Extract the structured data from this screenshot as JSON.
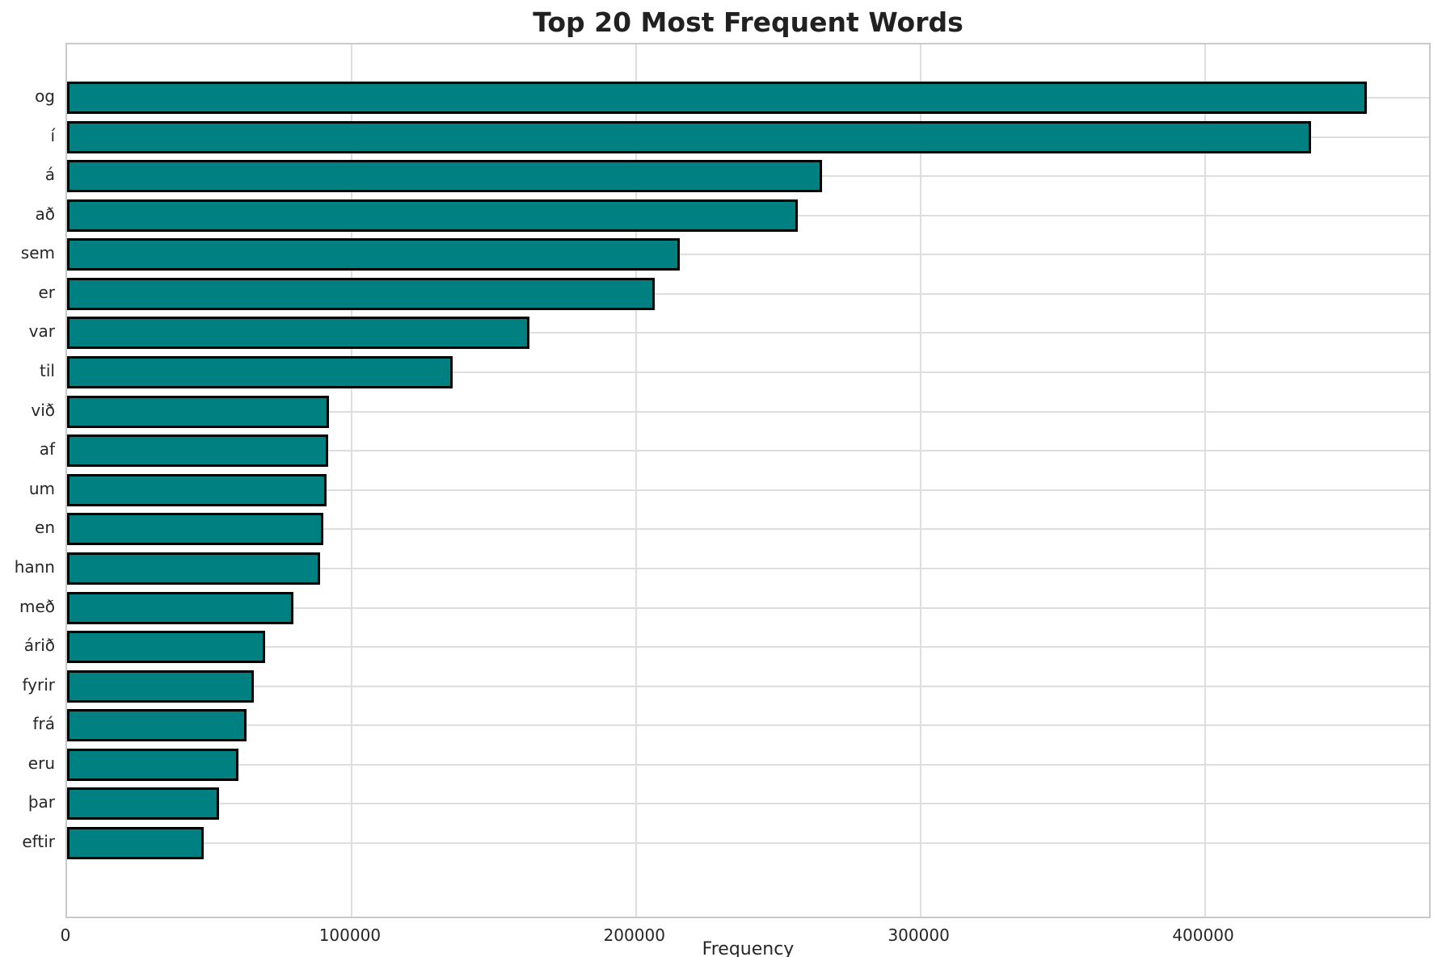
{
  "title": "Top 20 Most Frequent Words",
  "chart_data": {
    "type": "bar",
    "orientation": "horizontal",
    "title": "Top 20 Most Frequent Words",
    "xlabel": "Frequency",
    "ylabel": "",
    "categories": [
      "og",
      "í",
      "á",
      "að",
      "sem",
      "er",
      "var",
      "til",
      "við",
      "af",
      "um",
      "en",
      "hann",
      "með",
      "árið",
      "fyrir",
      "frá",
      "eru",
      "þar",
      "eftir"
    ],
    "values": [
      457000,
      437500,
      265500,
      257000,
      215500,
      206500,
      162500,
      135500,
      92000,
      91800,
      91200,
      90000,
      88900,
      79700,
      69600,
      65700,
      63100,
      60200,
      53400,
      48000
    ],
    "xlim": [
      0,
      480000
    ],
    "xticks": [
      0,
      100000,
      200000,
      300000,
      400000
    ],
    "grid": "both",
    "legend": "none",
    "colors": {
      "bar_fill": "#008080",
      "bar_edge": "#000000",
      "gridline": "#dedede",
      "spine": "#c9c9c9",
      "text": "#262626",
      "title_text": "#212121",
      "background": "#ffffff"
    }
  }
}
